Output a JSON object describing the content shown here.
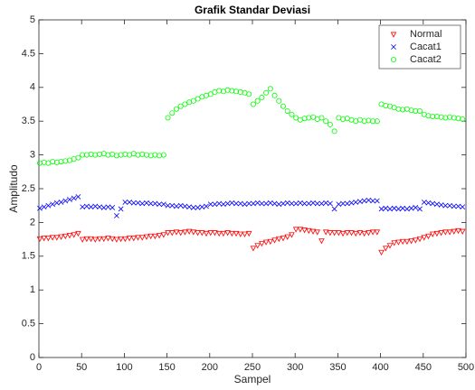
{
  "chart_data": {
    "type": "scatter",
    "title": "Grafik Standar Deviasi",
    "x_label": "Sampel",
    "y_label": "Amplitudo",
    "xlim": [
      0,
      500
    ],
    "ylim": [
      0,
      5
    ],
    "xticks": [
      0,
      50,
      100,
      150,
      200,
      250,
      300,
      350,
      400,
      450,
      500
    ],
    "yticks": [
      0,
      0.5,
      1,
      1.5,
      2,
      2.5,
      3,
      3.5,
      4,
      4.5,
      5
    ],
    "legend": "upper right",
    "x": [
      1,
      6,
      11,
      16,
      21,
      26,
      31,
      36,
      41,
      46,
      51,
      56,
      61,
      66,
      71,
      76,
      81,
      86,
      91,
      96,
      101,
      106,
      111,
      116,
      121,
      126,
      131,
      136,
      141,
      146,
      151,
      156,
      161,
      166,
      171,
      176,
      181,
      186,
      191,
      196,
      201,
      206,
      211,
      216,
      221,
      226,
      231,
      236,
      241,
      246,
      251,
      256,
      261,
      266,
      271,
      276,
      281,
      286,
      291,
      296,
      301,
      306,
      311,
      316,
      321,
      326,
      331,
      336,
      341,
      346,
      351,
      356,
      361,
      366,
      371,
      376,
      381,
      386,
      391,
      396,
      401,
      406,
      411,
      416,
      421,
      426,
      431,
      436,
      441,
      446,
      451,
      456,
      461,
      466,
      471,
      476,
      481,
      486,
      491,
      496
    ],
    "series": [
      {
        "name": "Normal",
        "color": "#ff0000",
        "marker": "v",
        "values": [
          1.76,
          1.77,
          1.77,
          1.78,
          1.78,
          1.79,
          1.8,
          1.81,
          1.82,
          1.84,
          1.75,
          1.76,
          1.76,
          1.75,
          1.76,
          1.76,
          1.77,
          1.76,
          1.75,
          1.76,
          1.76,
          1.77,
          1.77,
          1.78,
          1.78,
          1.79,
          1.8,
          1.8,
          1.81,
          1.82,
          1.85,
          1.85,
          1.86,
          1.85,
          1.86,
          1.87,
          1.86,
          1.85,
          1.85,
          1.84,
          1.85,
          1.85,
          1.84,
          1.84,
          1.85,
          1.84,
          1.84,
          1.83,
          1.83,
          1.84,
          1.62,
          1.66,
          1.69,
          1.71,
          1.72,
          1.74,
          1.76,
          1.77,
          1.79,
          1.82,
          1.9,
          1.9,
          1.89,
          1.88,
          1.87,
          1.86,
          1.73,
          1.86,
          1.85,
          1.85,
          1.85,
          1.84,
          1.85,
          1.85,
          1.84,
          1.85,
          1.84,
          1.85,
          1.86,
          1.86,
          1.56,
          1.62,
          1.66,
          1.7,
          1.71,
          1.72,
          1.72,
          1.73,
          1.74,
          1.76,
          1.78,
          1.8,
          1.83,
          1.84,
          1.85,
          1.86,
          1.86,
          1.87,
          1.88,
          1.87
        ]
      },
      {
        "name": "Cacat1",
        "color": "#0000ff",
        "marker": "x",
        "values": [
          2.21,
          2.23,
          2.25,
          2.27,
          2.29,
          2.3,
          2.32,
          2.34,
          2.36,
          2.38,
          2.23,
          2.24,
          2.23,
          2.24,
          2.23,
          2.22,
          2.23,
          2.22,
          2.1,
          2.2,
          2.3,
          2.3,
          2.29,
          2.29,
          2.28,
          2.29,
          2.28,
          2.28,
          2.27,
          2.27,
          2.25,
          2.25,
          2.24,
          2.25,
          2.24,
          2.23,
          2.22,
          2.22,
          2.23,
          2.24,
          2.27,
          2.27,
          2.28,
          2.27,
          2.28,
          2.29,
          2.28,
          2.28,
          2.27,
          2.28,
          2.28,
          2.29,
          2.28,
          2.28,
          2.29,
          2.28,
          2.27,
          2.28,
          2.29,
          2.28,
          2.28,
          2.29,
          2.28,
          2.28,
          2.29,
          2.28,
          2.28,
          2.29,
          2.28,
          2.2,
          2.27,
          2.28,
          2.28,
          2.29,
          2.3,
          2.31,
          2.32,
          2.33,
          2.32,
          2.32,
          2.2,
          2.21,
          2.2,
          2.21,
          2.2,
          2.21,
          2.2,
          2.21,
          2.22,
          2.2,
          2.3,
          2.29,
          2.28,
          2.27,
          2.26,
          2.25,
          2.25,
          2.24,
          2.24,
          2.23
        ]
      },
      {
        "name": "Cacat2",
        "color": "#00ff00",
        "marker": "o",
        "values": [
          2.88,
          2.89,
          2.88,
          2.9,
          2.89,
          2.9,
          2.91,
          2.92,
          2.94,
          2.96,
          3.0,
          3.0,
          3.01,
          3.0,
          3.01,
          3.02,
          3.0,
          3.01,
          2.99,
          3.0,
          3.01,
          3.0,
          3.02,
          3.0,
          3.01,
          3.0,
          2.99,
          3.0,
          2.99,
          3.0,
          3.55,
          3.62,
          3.68,
          3.72,
          3.75,
          3.78,
          3.8,
          3.83,
          3.86,
          3.88,
          3.9,
          3.93,
          3.95,
          3.94,
          3.96,
          3.95,
          3.94,
          3.93,
          3.92,
          3.9,
          3.75,
          3.8,
          3.85,
          3.92,
          3.98,
          3.88,
          3.8,
          3.72,
          3.65,
          3.6,
          3.55,
          3.52,
          3.54,
          3.55,
          3.56,
          3.53,
          3.55,
          3.5,
          3.45,
          3.35,
          3.55,
          3.53,
          3.54,
          3.52,
          3.5,
          3.52,
          3.5,
          3.51,
          3.5,
          3.5,
          3.75,
          3.73,
          3.72,
          3.7,
          3.68,
          3.67,
          3.68,
          3.66,
          3.65,
          3.65,
          3.6,
          3.58,
          3.57,
          3.57,
          3.56,
          3.55,
          3.56,
          3.55,
          3.54,
          3.53
        ]
      }
    ]
  }
}
